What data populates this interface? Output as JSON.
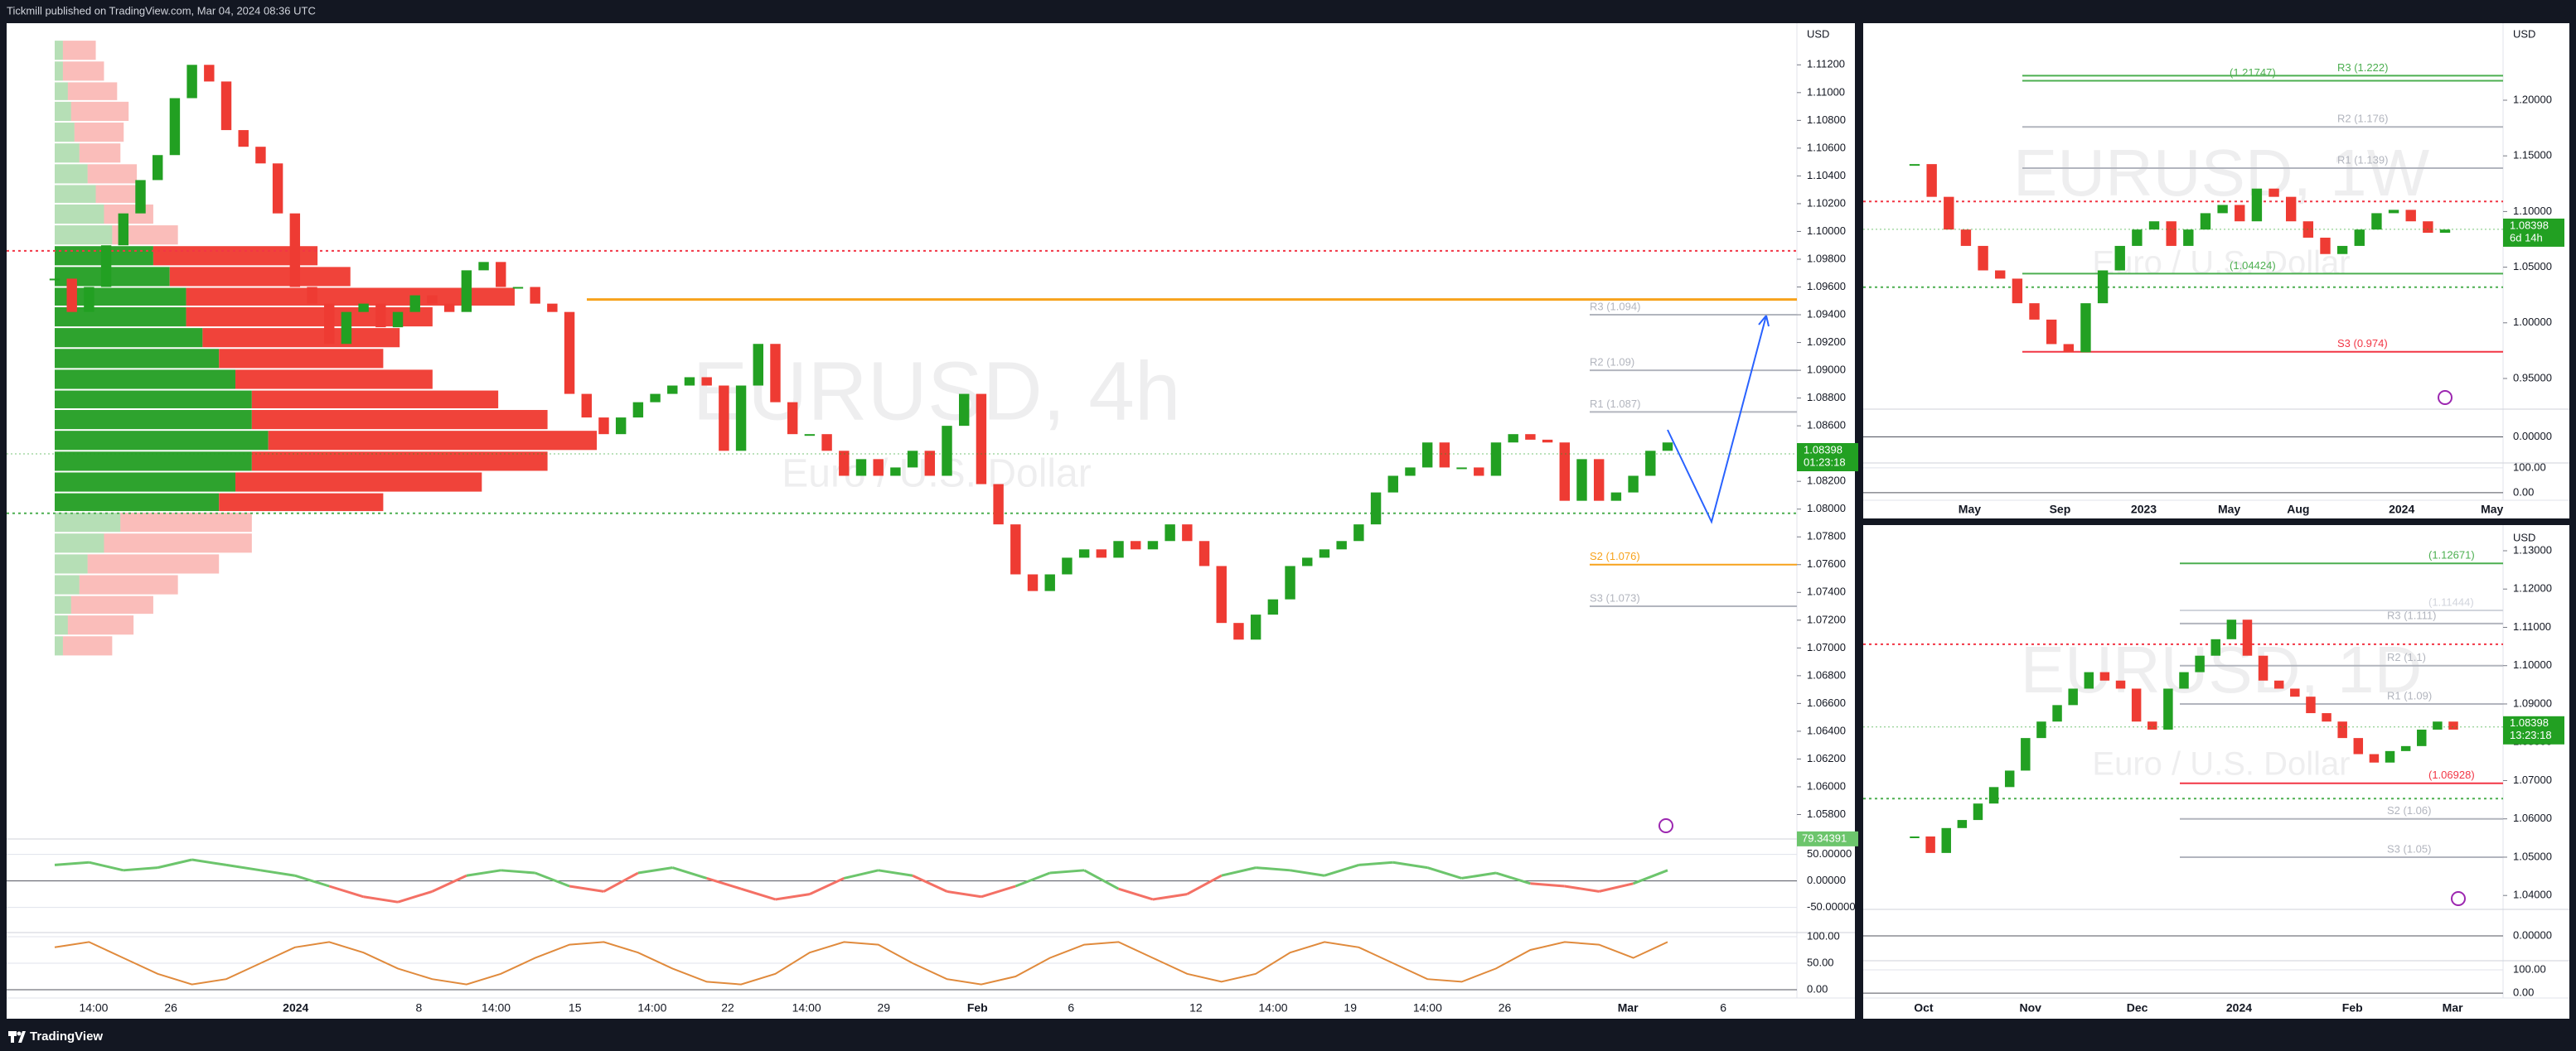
{
  "header": {
    "publisher": "Tickmill published on TradingView.com, Mar 04, 2024 08:36 UTC"
  },
  "footer": {
    "brand": "TradingView"
  },
  "chart_data": [
    {
      "type": "candlestick",
      "title": "EURUSD, 4h",
      "subtitle": "Euro / U.S. Dollar",
      "currency": "USD",
      "up_color": "#22a022",
      "down_color": "#ee3b33",
      "closes": [
        1.0966,
        1.0942,
        1.096,
        1.099,
        1.1013,
        1.1037,
        1.1055,
        1.1096,
        1.112,
        1.1108,
        1.1073,
        1.1061,
        1.1049,
        1.1013,
        1.096,
        1.0948,
        1.0919,
        1.0942,
        1.0948,
        1.0931,
        1.0942,
        1.0954,
        1.0948,
        1.0942,
        1.0972,
        1.0978,
        1.096,
        1.096,
        1.0948,
        1.0942,
        1.0883,
        1.0866,
        1.0854,
        1.0866,
        1.0877,
        1.0883,
        1.0889,
        1.0895,
        1.0889,
        1.0842,
        1.0889,
        1.0919,
        1.0877,
        1.0854,
        1.0854,
        1.0842,
        1.0824,
        1.0836,
        1.0824,
        1.083,
        1.0842,
        1.0824,
        1.086,
        1.0883,
        1.0818,
        1.0789,
        1.0753,
        1.0741,
        1.0753,
        1.0765,
        1.0771,
        1.0765,
        1.0777,
        1.0771,
        1.0777,
        1.0789,
        1.0777,
        1.0759,
        1.0718,
        1.0706,
        1.0724,
        1.0735,
        1.0759,
        1.0765,
        1.0771,
        1.0777,
        1.0789,
        1.0812,
        1.0824,
        1.083,
        1.0848,
        1.083,
        1.083,
        1.0824,
        1.0848,
        1.0854,
        1.085,
        1.0848,
        1.0806,
        1.0836,
        1.0806,
        1.0812,
        1.0824,
        1.0842,
        1.0848
      ],
      "ylim": [
        1.0563,
        1.115
      ],
      "yticks": [
        {
          "value": 1.112,
          "label": "1.11200"
        },
        {
          "value": 1.11,
          "label": "1.11000"
        },
        {
          "value": 1.108,
          "label": "1.10800"
        },
        {
          "value": 1.106,
          "label": "1.10600"
        },
        {
          "value": 1.104,
          "label": "1.10400"
        },
        {
          "value": 1.102,
          "label": "1.10200"
        },
        {
          "value": 1.1,
          "label": "1.10000"
        },
        {
          "value": 1.098,
          "label": "1.09800"
        },
        {
          "value": 1.096,
          "label": "1.09600"
        },
        {
          "value": 1.094,
          "label": "1.09400"
        },
        {
          "value": 1.092,
          "label": "1.09200"
        },
        {
          "value": 1.09,
          "label": "1.09000"
        },
        {
          "value": 1.088,
          "label": "1.08800"
        },
        {
          "value": 1.086,
          "label": "1.08600"
        },
        {
          "value": 1.084,
          "label": "1.08400"
        },
        {
          "value": 1.082,
          "label": "1.08200"
        },
        {
          "value": 1.08,
          "label": "1.08000"
        },
        {
          "value": 1.078,
          "label": "1.07800"
        },
        {
          "value": 1.076,
          "label": "1.07600"
        },
        {
          "value": 1.074,
          "label": "1.07400"
        },
        {
          "value": 1.072,
          "label": "1.07200"
        },
        {
          "value": 1.07,
          "label": "1.07000"
        },
        {
          "value": 1.068,
          "label": "1.06800"
        },
        {
          "value": 1.066,
          "label": "1.06600"
        },
        {
          "value": 1.064,
          "label": "1.06400"
        },
        {
          "value": 1.062,
          "label": "1.06200"
        },
        {
          "value": 1.06,
          "label": "1.06000"
        },
        {
          "value": 1.058,
          "label": "1.05800"
        }
      ],
      "x_labels": [
        "14:00",
        "26",
        "2024",
        "8",
        "14:00",
        "15",
        "14:00",
        "22",
        "14:00",
        "29",
        "Feb",
        "6",
        "12",
        "14:00",
        "19",
        "14:00",
        "26",
        "Mar",
        "6"
      ],
      "last_price": 1.08398,
      "countdown": "01:23:18",
      "value_area": [
        1.0797,
        1.0986
      ],
      "levels": [
        {
          "value": 1.0951,
          "color": "#f7a21b"
        },
        {
          "label": "R3 (1.094)",
          "value": 1.094,
          "color": "#b2b5be"
        },
        {
          "label": "R2 (1.09)",
          "value": 1.09,
          "color": "#b2b5be"
        },
        {
          "label": "R1 (1.087)",
          "value": 1.087,
          "color": "#b2b5be"
        },
        {
          "label": "S2 (1.076)",
          "value": 1.076,
          "color": "#f7a21b"
        },
        {
          "label": "S3 (1.073)",
          "value": 1.073,
          "color": "#b2b5be"
        }
      ],
      "profile": {
        "bins": [
          1.1138,
          1.1123,
          1.1108,
          1.1094,
          1.1079,
          1.1064,
          1.1049,
          1.1034,
          1.102,
          1.1005,
          1.099,
          1.0975,
          1.096,
          1.0946,
          1.0931,
          1.0916,
          1.0901,
          1.0886,
          1.0872,
          1.0857,
          1.0842,
          1.0827,
          1.0812,
          1.0798,
          1.0783,
          1.0768,
          1.0753,
          1.0738,
          1.0724,
          1.0709,
          1.0694
        ],
        "up": [
          5,
          5,
          8,
          10,
          12,
          15,
          20,
          25,
          30,
          35,
          60,
          70,
          80,
          80,
          90,
          100,
          110,
          120,
          120,
          130,
          120,
          110,
          100,
          40,
          30,
          20,
          15,
          10,
          8,
          5
        ],
        "down": [
          20,
          25,
          30,
          35,
          30,
          25,
          30,
          30,
          30,
          40,
          100,
          110,
          200,
          150,
          120,
          100,
          120,
          150,
          180,
          200,
          180,
          150,
          100,
          80,
          90,
          80,
          60,
          50,
          40,
          30
        ],
        "up_color": "#2ea32e",
        "down_color": "#f0433a"
      },
      "oscillator": {
        "ylim": [
          -96,
          76
        ],
        "yticks": [
          {
            "value": 50,
            "label": "50.00000"
          },
          {
            "value": 0,
            "label": "0.00000"
          },
          {
            "value": -50,
            "label": "-50.00000"
          }
        ],
        "values": [
          30,
          35,
          20,
          25,
          40,
          30,
          20,
          10,
          -10,
          -30,
          -40,
          -20,
          10,
          20,
          15,
          -10,
          -20,
          15,
          25,
          5,
          -15,
          -35,
          -25,
          5,
          20,
          10,
          -20,
          -30,
          -10,
          15,
          20,
          -15,
          -35,
          -25,
          10,
          25,
          20,
          10,
          30,
          35,
          25,
          5,
          15,
          -5,
          -10,
          -20,
          -5,
          20
        ],
        "color": "#6cc56c",
        "down_color": "#f47065",
        "last": 79.34391
      },
      "stochastic": {
        "ylim": [
          -15.6,
          104.7
        ],
        "yticks": [
          {
            "value": 100,
            "label": "100.00"
          },
          {
            "value": 50,
            "label": "50.00"
          },
          {
            "value": 0,
            "label": "0.00"
          }
        ],
        "values": [
          80,
          90,
          60,
          30,
          10,
          20,
          50,
          80,
          90,
          70,
          40,
          20,
          10,
          30,
          60,
          85,
          90,
          70,
          40,
          15,
          10,
          30,
          70,
          90,
          85,
          50,
          20,
          10,
          25,
          60,
          85,
          90,
          60,
          30,
          15,
          30,
          70,
          90,
          80,
          50,
          20,
          15,
          40,
          75,
          90,
          85,
          60,
          90
        ],
        "color": "#e08a3c"
      }
    },
    {
      "type": "candlestick",
      "title": "EURUSD, 1W",
      "subtitle": "Euro / U.S. Dollar",
      "currency": "USD",
      "up_color": "#22a022",
      "down_color": "#ee3b33",
      "closes": [
        1.1426,
        1.1132,
        1.0838,
        1.0691,
        1.0471,
        1.0397,
        1.0176,
        1.0029,
        0.9809,
        0.9735,
        1.0176,
        1.0471,
        1.0691,
        1.0838,
        1.0912,
        1.0691,
        1.0838,
        1.0985,
        1.1059,
        1.0912,
        1.1206,
        1.1132,
        1.0912,
        1.0765,
        1.0618,
        1.0691,
        1.0838,
        1.0985,
        1.1015,
        1.0912,
        1.0809,
        1.0838
      ],
      "ylim": [
        0.9232,
        1.2692
      ],
      "yticks": [
        {
          "value": 1.2,
          "label": "1.20000"
        },
        {
          "value": 1.15,
          "label": "1.15000"
        },
        {
          "value": 1.1,
          "label": "1.10000"
        },
        {
          "value": 1.05,
          "label": "1.05000"
        },
        {
          "value": 1,
          "label": "1.00000"
        },
        {
          "value": 0.95,
          "label": "0.95000"
        }
      ],
      "x_labels": [
        "May",
        "Sep",
        "2023",
        "May",
        "Aug",
        "2024",
        "May"
      ],
      "last_price": 1.08398,
      "countdown": "6d 14h",
      "value_area": [
        1.032,
        1.109
      ],
      "levels": [
        {
          "label": "(1.21747)",
          "value": 1.21747,
          "color": "#4caf50"
        },
        {
          "label": "R3 (1.222)",
          "value": 1.222,
          "color": "#4caf50"
        },
        {
          "label": "R2 (1.176)",
          "value": 1.176,
          "color": "#b2b5be"
        },
        {
          "label": "R1 (1.139)",
          "value": 1.139,
          "color": "#b2b5be"
        },
        {
          "label": "(1.04424)",
          "value": 1.04424,
          "color": "#4caf50"
        },
        {
          "label": "S3 (0.974)",
          "value": 0.974,
          "color": "#f23645"
        }
      ],
      "oscillator": {
        "ylim": [
          -50,
          50
        ],
        "yticks": [
          {
            "value": 0,
            "label": "0.00000"
          }
        ]
      },
      "stochastic": {
        "ylim": [
          -17,
          113
        ],
        "yticks": [
          {
            "value": 100,
            "label": "100.00"
          },
          {
            "value": 0,
            "label": "0.00"
          }
        ]
      }
    },
    {
      "type": "candlestick",
      "title": "EURUSD, 1D",
      "subtitle": "Euro / U.S. Dollar",
      "currency": "USD",
      "up_color": "#22a022",
      "down_color": "#ee3b33",
      "closes": [
        1.0554,
        1.0511,
        1.0576,
        1.0597,
        1.064,
        1.0683,
        1.0726,
        1.0811,
        1.0854,
        1.0897,
        1.094,
        1.0983,
        1.0961,
        1.094,
        1.0854,
        1.0833,
        1.094,
        1.0983,
        1.1026,
        1.1069,
        1.112,
        1.1026,
        1.0961,
        1.094,
        1.0919,
        1.0876,
        1.0854,
        1.0811,
        1.0769,
        1.0747,
        1.0777,
        1.079,
        1.0833,
        1.0854,
        1.0833
      ],
      "ylim": [
        1.0368,
        1.1367
      ],
      "yticks": [
        {
          "value": 1.13,
          "label": "1.13000"
        },
        {
          "value": 1.12,
          "label": "1.12000"
        },
        {
          "value": 1.11,
          "label": "1.11000"
        },
        {
          "value": 1.1,
          "label": "1.10000"
        },
        {
          "value": 1.09,
          "label": "1.09000"
        },
        {
          "value": 1.08,
          "label": "1.08000"
        },
        {
          "value": 1.07,
          "label": "1.07000"
        },
        {
          "value": 1.06,
          "label": "1.06000"
        },
        {
          "value": 1.05,
          "label": "1.05000"
        },
        {
          "value": 1.04,
          "label": "1.04000"
        }
      ],
      "x_labels": [
        "Oct",
        "Nov",
        "Dec",
        "2024",
        "Feb",
        "Mar"
      ],
      "last_price": 1.08398,
      "countdown": "13:23:18",
      "value_area": [
        1.0653,
        1.1056
      ],
      "levels": [
        {
          "label": "(1.12671)",
          "value": 1.12671,
          "color": "#4caf50"
        },
        {
          "label": "(1.11444)",
          "value": 1.11444,
          "color": "#d1d4dc"
        },
        {
          "label": "R3 (1.111)",
          "value": 1.111,
          "color": "#b2b5be"
        },
        {
          "label": "R2 (1.1)",
          "value": 1.1,
          "color": "#b2b5be"
        },
        {
          "label": "R1 (1.09)",
          "value": 1.09,
          "color": "#b2b5be"
        },
        {
          "label": "(1.06928)",
          "value": 1.06928,
          "color": "#f23645"
        },
        {
          "label": "S2 (1.06)",
          "value": 1.06,
          "color": "#b2b5be"
        },
        {
          "label": "S3 (1.05)",
          "value": 1.05,
          "color": "#b2b5be"
        }
      ],
      "oscillator": {
        "ylim": [
          -50,
          50
        ],
        "yticks": [
          {
            "value": 0,
            "label": "0.00000"
          }
        ]
      },
      "stochastic": {
        "ylim": [
          -14,
          132
        ],
        "yticks": [
          {
            "value": 100,
            "label": "100.00"
          },
          {
            "value": 0,
            "label": "0.00"
          }
        ]
      }
    }
  ]
}
